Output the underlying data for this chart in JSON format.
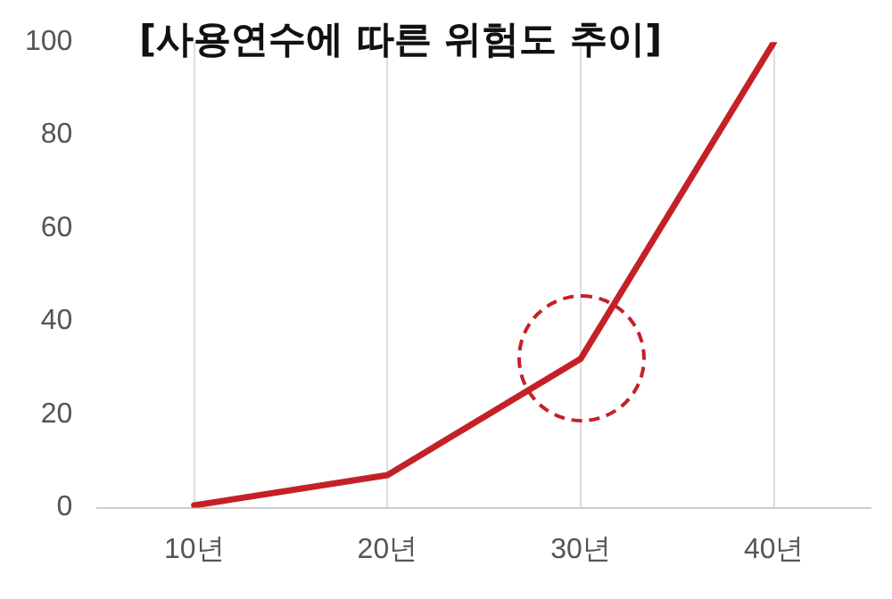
{
  "chart_data": {
    "type": "line",
    "title": "[사용연수에 따른 위험도 추이]",
    "categories": [
      "10년",
      "20년",
      "30년",
      "40년"
    ],
    "series": [
      {
        "color": "#c42127",
        "values": [
          0.5,
          7,
          32,
          100
        ]
      }
    ],
    "ylim": [
      0,
      100
    ],
    "yticks": [
      0,
      20,
      40,
      60,
      80,
      100
    ],
    "grid": "x",
    "legend": false,
    "marker": "none",
    "line_style": "solid"
  }
}
